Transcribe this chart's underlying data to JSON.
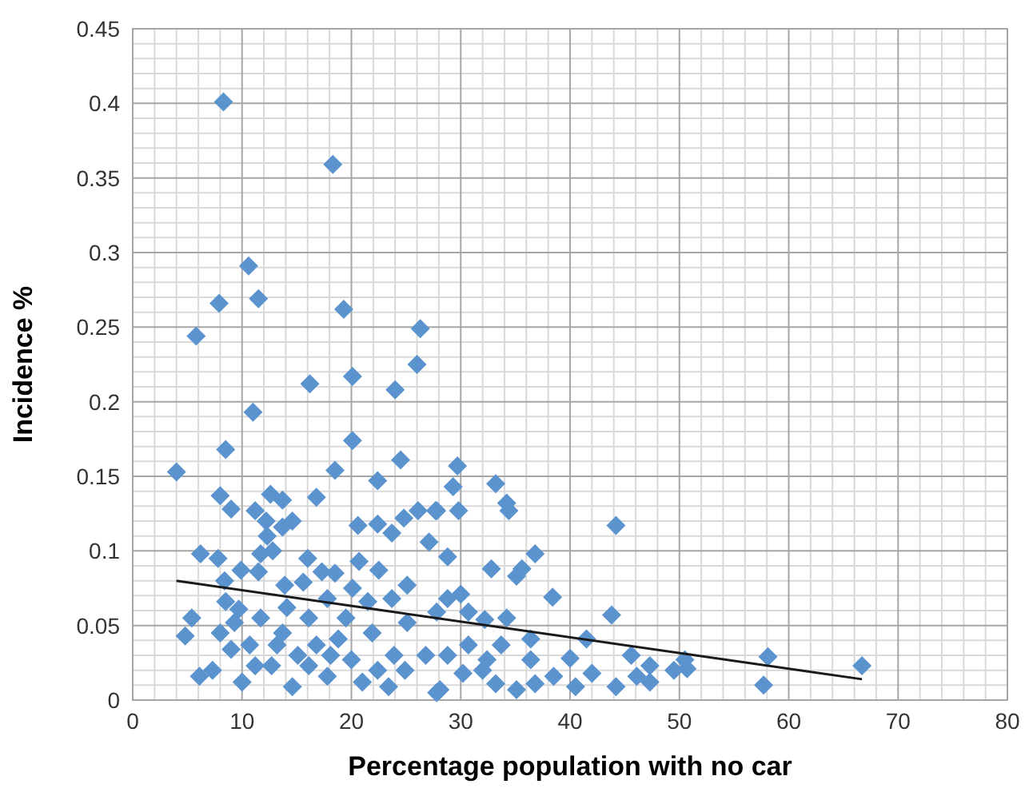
{
  "chart_data": {
    "type": "scatter",
    "xlabel": "Percentage population with no car",
    "ylabel": "Incidence %",
    "xlim": [
      0,
      80
    ],
    "xticks": [
      0,
      10,
      20,
      30,
      40,
      50,
      60,
      70,
      80
    ],
    "ylim": [
      0,
      0.45
    ],
    "yticks": [
      0,
      0.05,
      0.1,
      0.15,
      0.2,
      0.25,
      0.3,
      0.35,
      0.4,
      0.45
    ],
    "grid": true,
    "series": [
      {
        "marker": "diamond",
        "color": "#5b93cf",
        "x": [
          8.3,
          18.3,
          10.6,
          7.9,
          11.5,
          19.3,
          5.8,
          26.3,
          26.0,
          16.2,
          20.1,
          24.0,
          11.0,
          20.1,
          8.5,
          24.5,
          4.0,
          18.5,
          22.4,
          8.0,
          9.0,
          12.6,
          13.7,
          16.8,
          11.2,
          12.2,
          14.6,
          13.7,
          12.3,
          20.6,
          22.4,
          23.7,
          24.8,
          26.1,
          27.7,
          27.1,
          6.2,
          7.8,
          11.7,
          12.8,
          16.0,
          20.7,
          22.5,
          9.9,
          11.5,
          17.3,
          18.5,
          8.4,
          13.9,
          15.6,
          20.1,
          25.1,
          8.5,
          17.8,
          23.7,
          5.4,
          4.8,
          9.7,
          27.8,
          6.1,
          7.3,
          8.0,
          9.0,
          10.0,
          10.7,
          11.7,
          12.7,
          13.7,
          14.6,
          15.1,
          16.1,
          16.8,
          17.8,
          18.8,
          19.5,
          20.0,
          21.0,
          21.9,
          23.4,
          23.9,
          24.9,
          25.1,
          26.8,
          27.8,
          9.3,
          13.2,
          16.1,
          11.2,
          14.1,
          21.5,
          18.1,
          22.4,
          29.7,
          29.3,
          27.8,
          29.8,
          33.2,
          34.2,
          34.4,
          44.2,
          28.8,
          32.8,
          36.8,
          35.6,
          35.1,
          38.4,
          30.0,
          28.8,
          43.8,
          30.7,
          32.2,
          34.2,
          36.4,
          30.7,
          33.7,
          41.5,
          28.8,
          32.4,
          36.4,
          40.0,
          45.6,
          50.5,
          30.2,
          33.2,
          35.1,
          36.8,
          38.5,
          42.0,
          44.2,
          47.3,
          47.3,
          49.5,
          50.7,
          28.1,
          32.0,
          40.5,
          46.1,
          58.1,
          57.7,
          66.7
        ],
        "values": [
          0.401,
          0.359,
          0.291,
          0.266,
          0.269,
          0.262,
          0.244,
          0.249,
          0.225,
          0.212,
          0.217,
          0.208,
          0.193,
          0.174,
          0.168,
          0.161,
          0.153,
          0.154,
          0.147,
          0.137,
          0.128,
          0.138,
          0.134,
          0.136,
          0.127,
          0.12,
          0.12,
          0.116,
          0.11,
          0.117,
          0.118,
          0.112,
          0.122,
          0.127,
          0.127,
          0.106,
          0.098,
          0.095,
          0.098,
          0.1,
          0.095,
          0.093,
          0.087,
          0.087,
          0.086,
          0.086,
          0.085,
          0.08,
          0.077,
          0.079,
          0.075,
          0.077,
          0.066,
          0.068,
          0.068,
          0.055,
          0.043,
          0.061,
          0.059,
          0.016,
          0.02,
          0.045,
          0.034,
          0.012,
          0.037,
          0.055,
          0.023,
          0.045,
          0.009,
          0.03,
          0.055,
          0.037,
          0.016,
          0.041,
          0.055,
          0.027,
          0.012,
          0.045,
          0.009,
          0.03,
          0.02,
          0.052,
          0.03,
          0.005,
          0.052,
          0.037,
          0.023,
          0.023,
          0.062,
          0.066,
          0.03,
          0.02,
          0.157,
          0.143,
          0.127,
          0.127,
          0.145,
          0.132,
          0.127,
          0.117,
          0.096,
          0.088,
          0.098,
          0.088,
          0.083,
          0.069,
          0.071,
          0.068,
          0.057,
          0.059,
          0.054,
          0.055,
          0.041,
          0.037,
          0.037,
          0.041,
          0.03,
          0.027,
          0.027,
          0.028,
          0.03,
          0.027,
          0.018,
          0.011,
          0.007,
          0.011,
          0.016,
          0.018,
          0.009,
          0.023,
          0.012,
          0.02,
          0.021,
          0.007,
          0.02,
          0.009,
          0.016,
          0.029,
          0.01,
          0.023
        ]
      },
      {
        "type": "line",
        "marker": "none",
        "color": "#1a1a1a",
        "x": [
          4.0,
          66.7
        ],
        "values": [
          0.08,
          0.014
        ]
      }
    ]
  }
}
